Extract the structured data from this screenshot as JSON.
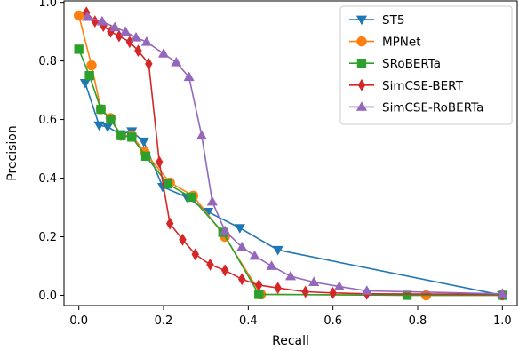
{
  "chart_data": {
    "type": "line",
    "title": "",
    "xlabel": "Recall",
    "ylabel": "Precision",
    "xlim": [
      -0.035,
      1.035
    ],
    "ylim": [
      -0.035,
      1.005
    ],
    "xticks": [
      0.0,
      0.2,
      0.4,
      0.6,
      0.8,
      1.0
    ],
    "xtick_labels": [
      "0.0",
      "0.2",
      "0.4",
      "0.6",
      "0.8",
      "1.0"
    ],
    "yticks": [
      0.0,
      0.2,
      0.4,
      0.6,
      0.8,
      1.0
    ],
    "ytick_labels": [
      "0.0",
      "0.2",
      "0.4",
      "0.6",
      "0.8",
      "1.0"
    ],
    "grid": false,
    "legend_position": "top-right",
    "series": [
      {
        "name": "ST5",
        "color": "#1f77b4",
        "marker": "triangle-down",
        "x": [
          0.015,
          0.048,
          0.068,
          0.098,
          0.125,
          0.153,
          0.198,
          0.255,
          0.305,
          0.38,
          0.47,
          1.0
        ],
        "y": [
          0.725,
          0.58,
          0.575,
          0.55,
          0.56,
          0.525,
          0.37,
          0.335,
          0.285,
          0.23,
          0.155,
          0.0
        ]
      },
      {
        "name": "MPNet",
        "color": "#ff7f0e",
        "marker": "circle",
        "x": [
          0.0,
          0.03,
          0.052,
          0.075,
          0.1,
          0.125,
          0.155,
          0.215,
          0.27,
          0.345,
          0.43,
          0.82,
          1.0
        ],
        "y": [
          0.955,
          0.785,
          0.635,
          0.605,
          0.545,
          0.545,
          0.49,
          0.385,
          0.34,
          0.2,
          0.003,
          0.0,
          0.0
        ]
      },
      {
        "name": "SRoBERTa",
        "color": "#2ca02c",
        "marker": "square",
        "x": [
          0.0,
          0.025,
          0.052,
          0.075,
          0.1,
          0.125,
          0.158,
          0.21,
          0.265,
          0.34,
          0.425,
          0.775,
          1.0
        ],
        "y": [
          0.84,
          0.75,
          0.635,
          0.6,
          0.545,
          0.54,
          0.475,
          0.38,
          0.335,
          0.215,
          0.003,
          0.0,
          0.0
        ]
      },
      {
        "name": "SimCSE-BERT",
        "color": "#d62728",
        "marker": "diamond",
        "x": [
          0.018,
          0.038,
          0.058,
          0.075,
          0.095,
          0.12,
          0.14,
          0.165,
          0.19,
          0.215,
          0.245,
          0.275,
          0.31,
          0.345,
          0.385,
          0.425,
          0.47,
          0.535,
          0.6,
          0.68,
          1.0
        ],
        "y": [
          0.965,
          0.935,
          0.92,
          0.9,
          0.885,
          0.865,
          0.835,
          0.79,
          0.455,
          0.245,
          0.19,
          0.14,
          0.105,
          0.085,
          0.055,
          0.035,
          0.025,
          0.012,
          0.008,
          0.005,
          0.003
        ]
      },
      {
        "name": "SimCSE-RoBERTa",
        "color": "#9467bd",
        "marker": "triangle-up",
        "x": [
          0.02,
          0.055,
          0.085,
          0.11,
          0.135,
          0.16,
          0.2,
          0.23,
          0.26,
          0.29,
          0.315,
          0.345,
          0.385,
          0.415,
          0.455,
          0.5,
          0.555,
          0.615,
          0.68,
          1.0
        ],
        "y": [
          0.95,
          0.935,
          0.915,
          0.9,
          0.88,
          0.865,
          0.825,
          0.795,
          0.745,
          0.545,
          0.32,
          0.22,
          0.165,
          0.135,
          0.1,
          0.065,
          0.045,
          0.03,
          0.015,
          0.005
        ]
      }
    ]
  }
}
